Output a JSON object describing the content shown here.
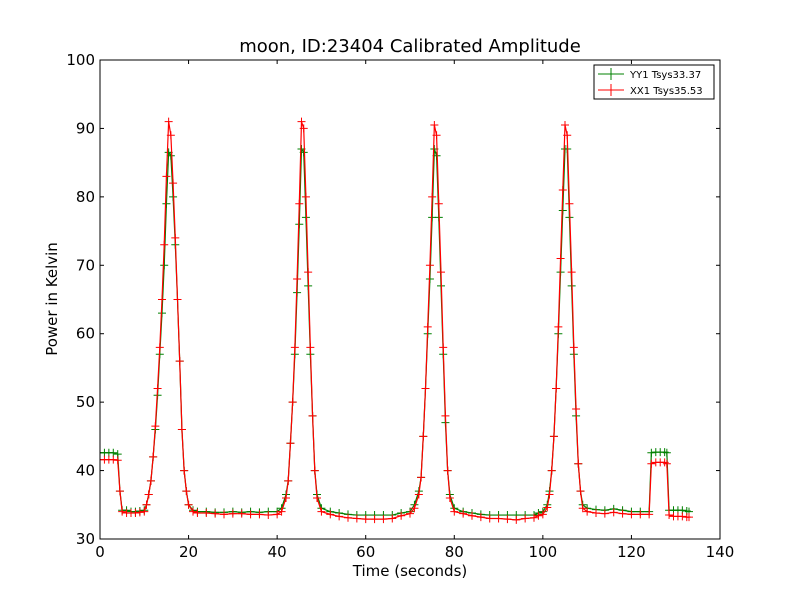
{
  "chart_data": {
    "type": "line",
    "title": "moon, ID:23404 Calibrated Amplitude",
    "xlabel": "Time (seconds)",
    "ylabel": "Power in Kelvin",
    "xlim": [
      0,
      140
    ],
    "ylim": [
      30,
      100
    ],
    "xticks": [
      "0",
      "20",
      "40",
      "60",
      "80",
      "100",
      "120",
      "140"
    ],
    "yticks": [
      "30",
      "40",
      "50",
      "60",
      "70",
      "80",
      "90",
      "100"
    ],
    "grid": false,
    "legend_position": "top-right",
    "series": [
      {
        "name": "YY1 Tsys33.37",
        "color": "#008000",
        "marker": "plus",
        "points": [
          [
            0.0,
            42.6
          ],
          [
            1.0,
            42.6
          ],
          [
            2.0,
            42.6
          ],
          [
            3.0,
            42.6
          ],
          [
            4.0,
            42.4
          ],
          [
            4.5,
            37.0
          ],
          [
            5.0,
            34.2
          ],
          [
            6.0,
            34.2
          ],
          [
            7.0,
            34.0
          ],
          [
            8.0,
            34.0
          ],
          [
            9.0,
            34.1
          ],
          [
            10.0,
            34.2
          ],
          [
            10.5,
            35.0
          ],
          [
            11.0,
            36.5
          ],
          [
            11.5,
            38.5
          ],
          [
            12.0,
            42.0
          ],
          [
            12.5,
            46.0
          ],
          [
            13.0,
            51.0
          ],
          [
            13.5,
            57.0
          ],
          [
            14.0,
            63.0
          ],
          [
            14.5,
            70.0
          ],
          [
            15.0,
            79.0
          ],
          [
            15.5,
            86.5
          ],
          [
            16.0,
            86.0
          ],
          [
            16.5,
            80.0
          ],
          [
            17.0,
            73.0
          ],
          [
            17.5,
            65.0
          ],
          [
            18.0,
            56.0
          ],
          [
            18.5,
            46.0
          ],
          [
            19.0,
            40.0
          ],
          [
            19.5,
            37.0
          ],
          [
            20.0,
            35.0
          ],
          [
            21.0,
            34.2
          ],
          [
            22.0,
            34.0
          ],
          [
            24.0,
            34.0
          ],
          [
            26.0,
            33.9
          ],
          [
            28.0,
            33.9
          ],
          [
            30.0,
            34.0
          ],
          [
            32.0,
            33.9
          ],
          [
            34.0,
            34.0
          ],
          [
            36.0,
            33.9
          ],
          [
            38.0,
            34.0
          ],
          [
            40.0,
            34.0
          ],
          [
            41.0,
            34.5
          ],
          [
            42.0,
            36.5
          ],
          [
            42.5,
            38.5
          ],
          [
            43.0,
            44.0
          ],
          [
            43.5,
            50.0
          ],
          [
            44.0,
            57.0
          ],
          [
            44.5,
            66.0
          ],
          [
            45.0,
            76.0
          ],
          [
            45.5,
            87.0
          ],
          [
            46.0,
            86.5
          ],
          [
            46.5,
            77.0
          ],
          [
            47.0,
            67.0
          ],
          [
            47.5,
            57.0
          ],
          [
            48.0,
            48.0
          ],
          [
            48.5,
            40.0
          ],
          [
            49.0,
            36.5
          ],
          [
            50.0,
            34.5
          ],
          [
            52.0,
            34.0
          ],
          [
            54.0,
            33.8
          ],
          [
            56.0,
            33.6
          ],
          [
            58.0,
            33.5
          ],
          [
            60.0,
            33.5
          ],
          [
            62.0,
            33.5
          ],
          [
            64.0,
            33.5
          ],
          [
            66.0,
            33.5
          ],
          [
            68.0,
            33.8
          ],
          [
            70.0,
            34.0
          ],
          [
            71.0,
            35.0
          ],
          [
            72.0,
            37.0
          ],
          [
            72.5,
            39.0
          ],
          [
            73.0,
            45.0
          ],
          [
            73.5,
            52.0
          ],
          [
            74.0,
            60.0
          ],
          [
            74.5,
            68.0
          ],
          [
            75.0,
            77.0
          ],
          [
            75.5,
            87.0
          ],
          [
            76.0,
            86.0
          ],
          [
            76.5,
            77.0
          ],
          [
            77.0,
            67.0
          ],
          [
            77.5,
            57.0
          ],
          [
            78.0,
            47.0
          ],
          [
            78.5,
            40.0
          ],
          [
            79.0,
            36.5
          ],
          [
            80.0,
            34.5
          ],
          [
            82.0,
            34.0
          ],
          [
            84.0,
            33.8
          ],
          [
            86.0,
            33.6
          ],
          [
            88.0,
            33.5
          ],
          [
            90.0,
            33.5
          ],
          [
            92.0,
            33.5
          ],
          [
            94.0,
            33.5
          ],
          [
            96.0,
            33.5
          ],
          [
            98.0,
            33.5
          ],
          [
            99.0,
            33.8
          ],
          [
            100.0,
            34.0
          ],
          [
            101.0,
            35.0
          ],
          [
            101.5,
            37.0
          ],
          [
            102.0,
            40.0
          ],
          [
            102.5,
            45.0
          ],
          [
            103.0,
            52.0
          ],
          [
            103.5,
            60.0
          ],
          [
            104.0,
            69.0
          ],
          [
            104.5,
            78.0
          ],
          [
            105.0,
            87.0
          ],
          [
            105.5,
            87.0
          ],
          [
            106.0,
            77.0
          ],
          [
            106.5,
            67.0
          ],
          [
            107.0,
            57.0
          ],
          [
            107.5,
            48.0
          ],
          [
            108.0,
            41.0
          ],
          [
            108.5,
            37.0
          ],
          [
            109.0,
            35.0
          ],
          [
            110.0,
            34.5
          ],
          [
            112.0,
            34.3
          ],
          [
            114.0,
            34.2
          ],
          [
            116.0,
            34.4
          ],
          [
            118.0,
            34.2
          ],
          [
            120.0,
            34.0
          ],
          [
            122.0,
            34.0
          ],
          [
            124.0,
            34.0
          ],
          [
            124.5,
            42.6
          ],
          [
            125.5,
            42.7
          ],
          [
            126.5,
            42.7
          ],
          [
            127.5,
            42.7
          ],
          [
            128.0,
            42.6
          ],
          [
            128.5,
            34.2
          ],
          [
            129.5,
            34.2
          ],
          [
            130.5,
            34.2
          ],
          [
            131.5,
            34.2
          ],
          [
            132.5,
            34.1
          ],
          [
            133.0,
            34.0
          ]
        ]
      },
      {
        "name": "XX1 Tsys35.53",
        "color": "#ff0000",
        "marker": "plus",
        "points": [
          [
            0.0,
            41.6
          ],
          [
            1.0,
            41.6
          ],
          [
            2.0,
            41.6
          ],
          [
            3.0,
            41.6
          ],
          [
            4.0,
            41.5
          ],
          [
            4.5,
            37.0
          ],
          [
            5.0,
            34.0
          ],
          [
            6.0,
            33.8
          ],
          [
            7.0,
            33.8
          ],
          [
            8.0,
            33.8
          ],
          [
            9.0,
            33.9
          ],
          [
            10.0,
            34.0
          ],
          [
            10.5,
            35.0
          ],
          [
            11.0,
            36.5
          ],
          [
            11.5,
            38.5
          ],
          [
            12.0,
            42.0
          ],
          [
            12.5,
            46.5
          ],
          [
            13.0,
            52.0
          ],
          [
            13.5,
            58.0
          ],
          [
            14.0,
            65.0
          ],
          [
            14.5,
            73.0
          ],
          [
            15.0,
            83.0
          ],
          [
            15.5,
            91.0
          ],
          [
            16.0,
            89.0
          ],
          [
            16.5,
            82.0
          ],
          [
            17.0,
            74.0
          ],
          [
            17.5,
            65.0
          ],
          [
            18.0,
            56.0
          ],
          [
            18.5,
            46.0
          ],
          [
            19.0,
            40.0
          ],
          [
            19.5,
            37.0
          ],
          [
            20.0,
            35.0
          ],
          [
            21.0,
            34.0
          ],
          [
            22.0,
            33.8
          ],
          [
            24.0,
            33.8
          ],
          [
            26.0,
            33.7
          ],
          [
            28.0,
            33.6
          ],
          [
            30.0,
            33.7
          ],
          [
            32.0,
            33.7
          ],
          [
            34.0,
            33.6
          ],
          [
            36.0,
            33.6
          ],
          [
            38.0,
            33.5
          ],
          [
            40.0,
            33.6
          ],
          [
            41.0,
            34.0
          ],
          [
            42.0,
            36.0
          ],
          [
            42.5,
            38.5
          ],
          [
            43.0,
            44.0
          ],
          [
            43.5,
            50.0
          ],
          [
            44.0,
            58.0
          ],
          [
            44.5,
            68.0
          ],
          [
            45.0,
            79.0
          ],
          [
            45.5,
            91.0
          ],
          [
            46.0,
            90.0
          ],
          [
            46.5,
            80.0
          ],
          [
            47.0,
            69.0
          ],
          [
            47.5,
            58.0
          ],
          [
            48.0,
            48.0
          ],
          [
            48.5,
            40.0
          ],
          [
            49.0,
            36.0
          ],
          [
            50.0,
            34.0
          ],
          [
            52.0,
            33.6
          ],
          [
            54.0,
            33.3
          ],
          [
            56.0,
            33.1
          ],
          [
            58.0,
            33.0
          ],
          [
            60.0,
            32.9
          ],
          [
            62.0,
            32.9
          ],
          [
            64.0,
            32.9
          ],
          [
            66.0,
            33.0
          ],
          [
            68.0,
            33.4
          ],
          [
            70.0,
            33.7
          ],
          [
            71.0,
            34.5
          ],
          [
            72.0,
            36.5
          ],
          [
            72.5,
            39.0
          ],
          [
            73.0,
            45.0
          ],
          [
            73.5,
            52.0
          ],
          [
            74.0,
            61.0
          ],
          [
            74.5,
            70.0
          ],
          [
            75.0,
            80.0
          ],
          [
            75.5,
            90.5
          ],
          [
            76.0,
            89.0
          ],
          [
            76.5,
            79.0
          ],
          [
            77.0,
            69.0
          ],
          [
            77.5,
            58.0
          ],
          [
            78.0,
            48.0
          ],
          [
            78.5,
            40.0
          ],
          [
            79.0,
            36.0
          ],
          [
            80.0,
            34.0
          ],
          [
            82.0,
            33.7
          ],
          [
            84.0,
            33.4
          ],
          [
            86.0,
            33.2
          ],
          [
            88.0,
            33.0
          ],
          [
            90.0,
            33.0
          ],
          [
            92.0,
            32.9
          ],
          [
            94.0,
            32.8
          ],
          [
            96.0,
            33.0
          ],
          [
            98.0,
            33.1
          ],
          [
            99.0,
            33.4
          ],
          [
            100.0,
            33.6
          ],
          [
            101.0,
            34.6
          ],
          [
            101.5,
            36.5
          ],
          [
            102.0,
            40.0
          ],
          [
            102.5,
            45.0
          ],
          [
            103.0,
            52.0
          ],
          [
            103.5,
            61.0
          ],
          [
            104.0,
            71.0
          ],
          [
            104.5,
            81.0
          ],
          [
            105.0,
            90.5
          ],
          [
            105.5,
            89.0
          ],
          [
            106.0,
            79.0
          ],
          [
            106.5,
            69.0
          ],
          [
            107.0,
            58.0
          ],
          [
            107.5,
            49.0
          ],
          [
            108.0,
            41.0
          ],
          [
            108.5,
            37.0
          ],
          [
            109.0,
            34.5
          ],
          [
            110.0,
            34.0
          ],
          [
            112.0,
            33.8
          ],
          [
            114.0,
            33.7
          ],
          [
            116.0,
            33.9
          ],
          [
            118.0,
            33.7
          ],
          [
            120.0,
            33.6
          ],
          [
            122.0,
            33.6
          ],
          [
            124.0,
            33.6
          ],
          [
            124.5,
            41.0
          ],
          [
            125.5,
            41.2
          ],
          [
            126.5,
            41.2
          ],
          [
            127.5,
            41.2
          ],
          [
            128.0,
            41.0
          ],
          [
            128.5,
            33.5
          ],
          [
            129.5,
            33.3
          ],
          [
            130.5,
            33.3
          ],
          [
            131.5,
            33.3
          ],
          [
            132.5,
            33.2
          ],
          [
            133.0,
            33.2
          ]
        ]
      }
    ]
  }
}
